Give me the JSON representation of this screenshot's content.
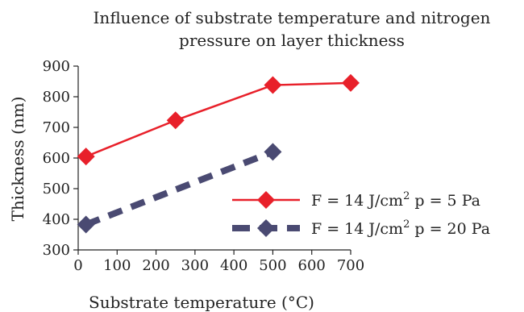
{
  "chart_data": {
    "type": "line",
    "title_line1": "Influence of substrate temperature and nitrogen",
    "title_line2": "pressure on layer thickness",
    "xlabel": "Substrate  temperature (°C)",
    "ylabel": "Thickness (nm)",
    "xlim": [
      0,
      700
    ],
    "ylim": [
      300,
      900
    ],
    "x_ticks": [
      0,
      100,
      200,
      300,
      400,
      500,
      600,
      700
    ],
    "y_ticks": [
      300,
      400,
      500,
      600,
      700,
      800,
      900
    ],
    "grid": false,
    "legend_position": "right",
    "series": [
      {
        "name_prefix": "F = 14 J/cm",
        "name_sup": "2",
        "name_suffix": " p = 5 Pa",
        "color": "#e8202a",
        "line_style": "solid",
        "marker": "diamond",
        "x": [
          20,
          250,
          500,
          700
        ],
        "y": [
          605,
          723,
          838,
          845
        ]
      },
      {
        "name_prefix": "F = 14 J/cm",
        "name_sup": "2",
        "name_suffix": " p = 20 Pa",
        "color": "#4a4a72",
        "line_style": "dashed",
        "marker": "diamond",
        "x": [
          20,
          500
        ],
        "y": [
          383,
          620
        ]
      }
    ]
  }
}
